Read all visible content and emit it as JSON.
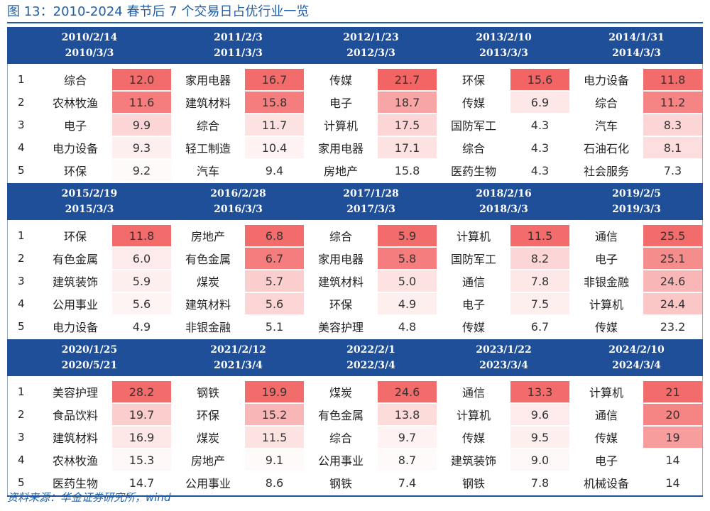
{
  "title": "图 13：2010-2024 春节后 7 个交易日占优行业一览",
  "source": "资料来源：华金证券研究所，wind",
  "colors": {
    "header_bg": "#1f4f99",
    "title": "#1f5fa8",
    "heat_max": "#f25c5c",
    "heat_min": "#ffffff"
  },
  "blocks": [
    {
      "periods": [
        {
          "start": "2010/2/14",
          "end": "2010/3/3"
        },
        {
          "start": "2011/2/3",
          "end": "2011/3/3"
        },
        {
          "start": "2012/1/23",
          "end": "2012/3/3"
        },
        {
          "start": "2013/2/10",
          "end": "2013/3/3"
        },
        {
          "start": "2014/1/31",
          "end": "2014/3/3"
        }
      ],
      "rows": [
        {
          "rank": "1",
          "cells": [
            {
              "name": "综合",
              "value": "12.0",
              "heat": 0.9
            },
            {
              "name": "家用电器",
              "value": "16.7",
              "heat": 0.9
            },
            {
              "name": "传媒",
              "value": "21.7",
              "heat": 0.95
            },
            {
              "name": "环保",
              "value": "15.6",
              "heat": 0.95
            },
            {
              "name": "电力设备",
              "value": "11.8",
              "heat": 0.9
            }
          ]
        },
        {
          "rank": "2",
          "cells": [
            {
              "name": "农林牧渔",
              "value": "11.6",
              "heat": 0.8
            },
            {
              "name": "建筑材料",
              "value": "15.8",
              "heat": 0.8
            },
            {
              "name": "电子",
              "value": "18.7",
              "heat": 0.55
            },
            {
              "name": "传媒",
              "value": "6.9",
              "heat": 0.15
            },
            {
              "name": "综合",
              "value": "11.2",
              "heat": 0.75
            }
          ]
        },
        {
          "rank": "3",
          "cells": [
            {
              "name": "电子",
              "value": "9.9",
              "heat": 0.25
            },
            {
              "name": "综合",
              "value": "11.7",
              "heat": 0.18
            },
            {
              "name": "计算机",
              "value": "17.5",
              "heat": 0.25
            },
            {
              "name": "国防军工",
              "value": "4.3",
              "heat": 0.0
            },
            {
              "name": "汽车",
              "value": "8.3",
              "heat": 0.25
            }
          ]
        },
        {
          "rank": "4",
          "cells": [
            {
              "name": "电力设备",
              "value": "9.3",
              "heat": 0.1
            },
            {
              "name": "轻工制造",
              "value": "10.4",
              "heat": 0.08
            },
            {
              "name": "家用电器",
              "value": "17.1",
              "heat": 0.18
            },
            {
              "name": "综合",
              "value": "4.3",
              "heat": 0.0
            },
            {
              "name": "石油石化",
              "value": "8.1",
              "heat": 0.2
            }
          ]
        },
        {
          "rank": "5",
          "cells": [
            {
              "name": "环保",
              "value": "9.2",
              "heat": 0.03
            },
            {
              "name": "汽车",
              "value": "9.4",
              "heat": 0.0
            },
            {
              "name": "房地产",
              "value": "15.8",
              "heat": 0.0
            },
            {
              "name": "医药生物",
              "value": "4.3",
              "heat": 0.0
            },
            {
              "name": "社会服务",
              "value": "7.3",
              "heat": 0.0
            }
          ]
        }
      ]
    },
    {
      "periods": [
        {
          "start": "2015/2/19",
          "end": "2015/3/3"
        },
        {
          "start": "2016/2/28",
          "end": "2016/3/3"
        },
        {
          "start": "2017/1/28",
          "end": "2017/3/3"
        },
        {
          "start": "2018/2/16",
          "end": "2018/3/3"
        },
        {
          "start": "2019/2/5",
          "end": "2019/3/3"
        }
      ],
      "rows": [
        {
          "rank": "1",
          "cells": [
            {
              "name": "环保",
              "value": "11.8",
              "heat": 0.9
            },
            {
              "name": "房地产",
              "value": "6.8",
              "heat": 0.9
            },
            {
              "name": "综合",
              "value": "5.9",
              "heat": 0.9
            },
            {
              "name": "计算机",
              "value": "11.5",
              "heat": 0.9
            },
            {
              "name": "通信",
              "value": "25.5",
              "heat": 0.9
            }
          ]
        },
        {
          "rank": "2",
          "cells": [
            {
              "name": "有色金属",
              "value": "6.0",
              "heat": 0.12
            },
            {
              "name": "有色金属",
              "value": "6.7",
              "heat": 0.8
            },
            {
              "name": "家用电器",
              "value": "5.8",
              "heat": 0.8
            },
            {
              "name": "国防军工",
              "value": "8.2",
              "heat": 0.25
            },
            {
              "name": "电子",
              "value": "25.1",
              "heat": 0.7
            }
          ]
        },
        {
          "rank": "3",
          "cells": [
            {
              "name": "建筑装饰",
              "value": "5.9",
              "heat": 0.1
            },
            {
              "name": "煤炭",
              "value": "5.7",
              "heat": 0.3
            },
            {
              "name": "建筑材料",
              "value": "5.0",
              "heat": 0.18
            },
            {
              "name": "通信",
              "value": "7.8",
              "heat": 0.15
            },
            {
              "name": "非银金融",
              "value": "24.6",
              "heat": 0.45
            }
          ]
        },
        {
          "rank": "4",
          "cells": [
            {
              "name": "公用事业",
              "value": "5.6",
              "heat": 0.07
            },
            {
              "name": "建筑材料",
              "value": "5.6",
              "heat": 0.25
            },
            {
              "name": "环保",
              "value": "4.9",
              "heat": 0.1
            },
            {
              "name": "电子",
              "value": "7.5",
              "heat": 0.1
            },
            {
              "name": "计算机",
              "value": "24.4",
              "heat": 0.35
            }
          ]
        },
        {
          "rank": "5",
          "cells": [
            {
              "name": "电力设备",
              "value": "4.9",
              "heat": 0.0
            },
            {
              "name": "非银金融",
              "value": "5.1",
              "heat": 0.0
            },
            {
              "name": "美容护理",
              "value": "4.8",
              "heat": 0.0
            },
            {
              "name": "传媒",
              "value": "6.7",
              "heat": 0.0
            },
            {
              "name": "传媒",
              "value": "23.2",
              "heat": 0.0
            }
          ]
        }
      ]
    },
    {
      "periods": [
        {
          "start": "2020/1/25",
          "end": "2020/5/21"
        },
        {
          "start": "2021/2/12",
          "end": "2021/3/4"
        },
        {
          "start": "2022/2/1",
          "end": "2022/3/4"
        },
        {
          "start": "2023/1/22",
          "end": "2023/3/4"
        },
        {
          "start": "2024/2/10",
          "end": "2024/3/4"
        }
      ],
      "rows": [
        {
          "rank": "1",
          "cells": [
            {
              "name": "美容护理",
              "value": "28.2",
              "heat": 0.9
            },
            {
              "name": "钢铁",
              "value": "19.9",
              "heat": 0.9
            },
            {
              "name": "煤炭",
              "value": "24.6",
              "heat": 0.9
            },
            {
              "name": "通信",
              "value": "13.3",
              "heat": 0.9
            },
            {
              "name": "计算机",
              "value": "21",
              "heat": 0.9
            }
          ]
        },
        {
          "rank": "2",
          "cells": [
            {
              "name": "食品饮料",
              "value": "19.7",
              "heat": 0.3
            },
            {
              "name": "环保",
              "value": "15.2",
              "heat": 0.45
            },
            {
              "name": "有色金属",
              "value": "13.8",
              "heat": 0.22
            },
            {
              "name": "计算机",
              "value": "9.6",
              "heat": 0.12
            },
            {
              "name": "通信",
              "value": "20",
              "heat": 0.75
            }
          ]
        },
        {
          "rank": "3",
          "cells": [
            {
              "name": "建筑材料",
              "value": "16.9",
              "heat": 0.15
            },
            {
              "name": "煤炭",
              "value": "11.5",
              "heat": 0.18
            },
            {
              "name": "综合",
              "value": "9.7",
              "heat": 0.08
            },
            {
              "name": "传媒",
              "value": "9.5",
              "heat": 0.1
            },
            {
              "name": "传媒",
              "value": "19",
              "heat": 0.6
            }
          ]
        },
        {
          "rank": "4",
          "cells": [
            {
              "name": "农林牧渔",
              "value": "15.3",
              "heat": 0.05
            },
            {
              "name": "房地产",
              "value": "9.1",
              "heat": 0.03
            },
            {
              "name": "公用事业",
              "value": "8.7",
              "heat": 0.03
            },
            {
              "name": "建筑装饰",
              "value": "9.0",
              "heat": 0.05
            },
            {
              "name": "电子",
              "value": "14",
              "heat": 0.0
            }
          ]
        },
        {
          "rank": "5",
          "cells": [
            {
              "name": "医药生物",
              "value": "14.7",
              "heat": 0.0
            },
            {
              "name": "公用事业",
              "value": "8.6",
              "heat": 0.0
            },
            {
              "name": "钢铁",
              "value": "7.4",
              "heat": 0.0
            },
            {
              "name": "钢铁",
              "value": "7.8",
              "heat": 0.0
            },
            {
              "name": "机械设备",
              "value": "14",
              "heat": 0.0
            }
          ]
        }
      ]
    }
  ]
}
